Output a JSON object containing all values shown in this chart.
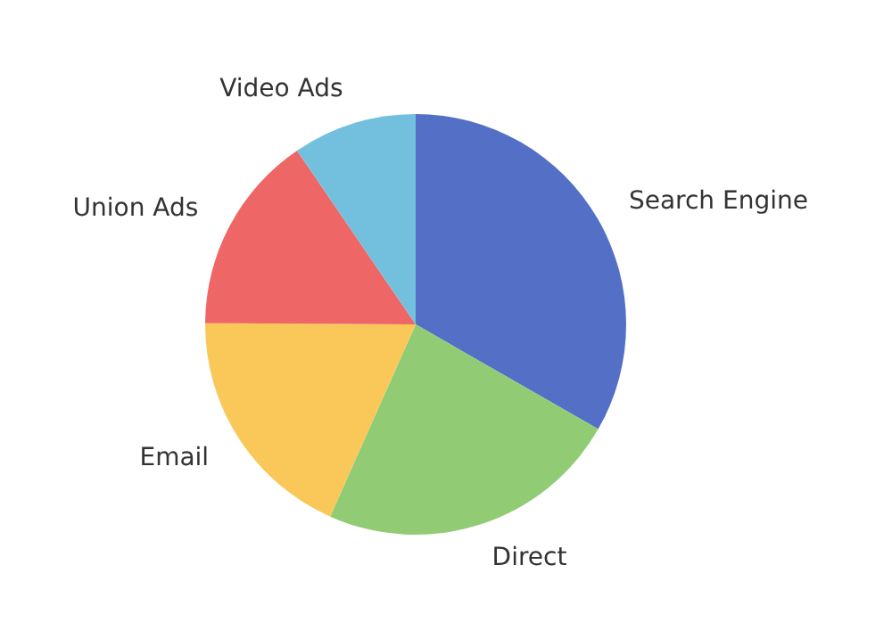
{
  "chart_data": {
    "type": "pie",
    "categories": [
      "Search Engine",
      "Direct",
      "Email",
      "Union Ads",
      "Video Ads"
    ],
    "values": [
      33.3,
      23.36,
      18.43,
      15.38,
      9.53
    ],
    "colors": [
      "#5470c6",
      "#91cc75",
      "#fac858",
      "#ee6666",
      "#73c0de"
    ]
  }
}
